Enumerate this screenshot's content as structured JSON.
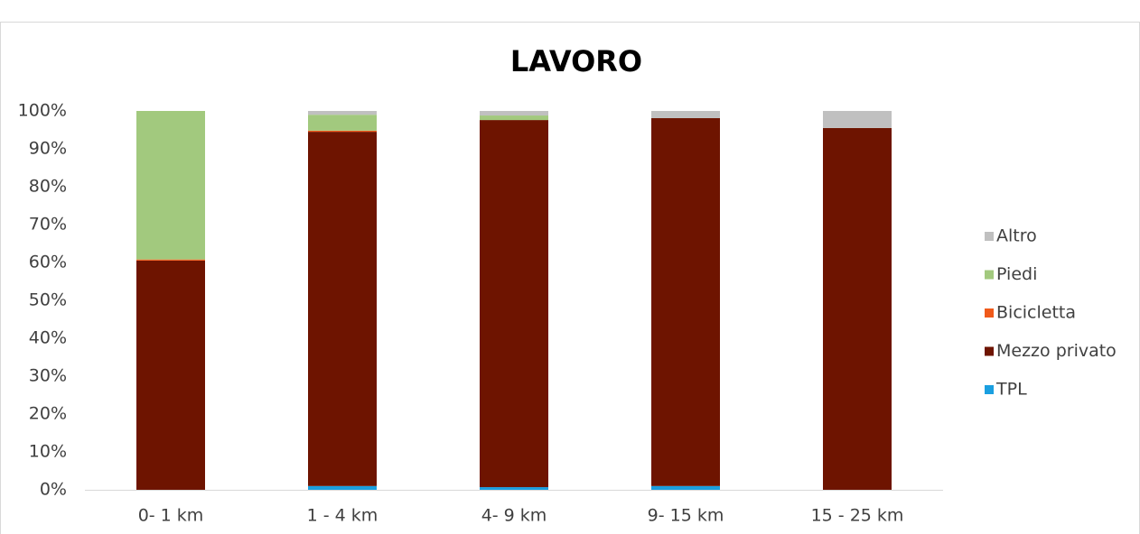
{
  "chart_data": {
    "type": "stacked_bar",
    "title": "LAVORO",
    "categories": [
      "0- 1 km",
      "1 - 4 km",
      "4- 9 km",
      "9- 15 km",
      "15 - 25 km"
    ],
    "series": [
      {
        "name": "TPL",
        "color": "#1a9fe0",
        "values": [
          0,
          1.0,
          0.7,
          1.0,
          0
        ]
      },
      {
        "name": "Mezzo privato",
        "color": "#6e1400",
        "values": [
          60.5,
          93.5,
          96.9,
          97.1,
          95.5
        ]
      },
      {
        "name": "Bicicletta",
        "color": "#f05a1a",
        "values": [
          0.3,
          0.3,
          0,
          0,
          0
        ]
      },
      {
        "name": "Piedi",
        "color": "#a2c97e",
        "values": [
          39.2,
          4.2,
          1.2,
          0,
          0
        ]
      },
      {
        "name": "Altro",
        "color": "#c0c0c0",
        "values": [
          0,
          1.0,
          1.2,
          1.9,
          4.5
        ]
      }
    ],
    "ylim": [
      0,
      100
    ],
    "yticks": [
      {
        "value": 0,
        "label": "0%"
      },
      {
        "value": 10,
        "label": "10%"
      },
      {
        "value": 20,
        "label": "20%"
      },
      {
        "value": 30,
        "label": "30%"
      },
      {
        "value": 40,
        "label": "40%"
      },
      {
        "value": 50,
        "label": "50%"
      },
      {
        "value": 60,
        "label": "60%"
      },
      {
        "value": 70,
        "label": "70%"
      },
      {
        "value": 80,
        "label": "80%"
      },
      {
        "value": 90,
        "label": "90%"
      },
      {
        "value": 100,
        "label": "100%"
      }
    ],
    "legend": "right",
    "grid": false
  }
}
